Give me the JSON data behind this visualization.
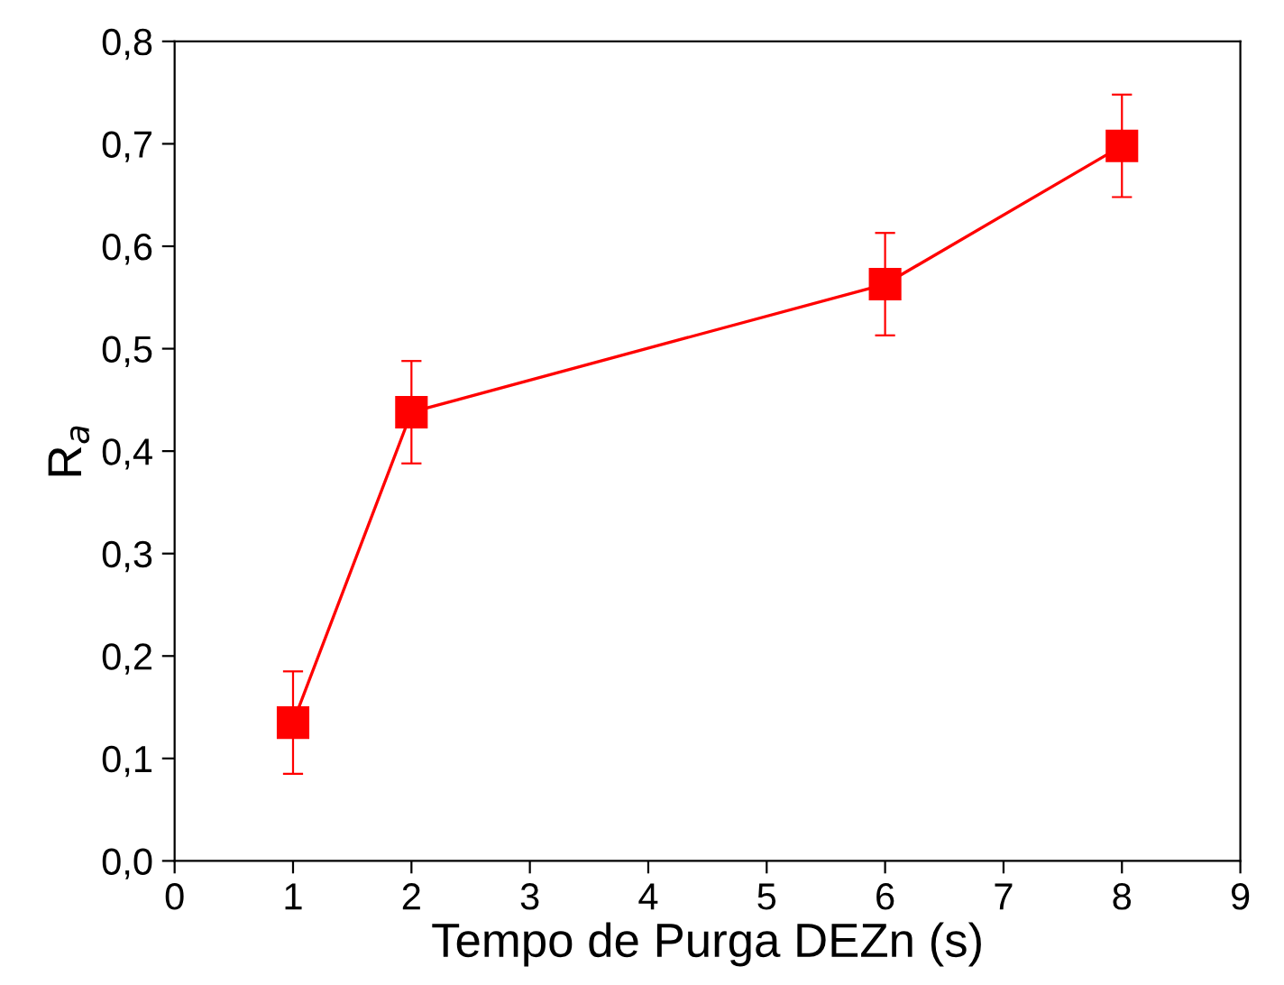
{
  "chart_data": {
    "type": "line",
    "xlabel": "Tempo de Purga DEZn (s)",
    "ylabel": "R$_{a}$",
    "x": [
      1,
      2,
      6,
      8
    ],
    "series": [
      {
        "color": "#ff0000",
        "values": [
          0.135,
          0.438,
          0.563,
          0.698
        ],
        "errors": [
          0.05,
          0.05,
          0.05,
          0.05
        ]
      }
    ],
    "marker": "square",
    "line_style": "solid",
    "grid": false,
    "legend": false,
    "xlim": [
      0,
      9
    ],
    "xticks": [
      0,
      1,
      2,
      3,
      4,
      5,
      6,
      7,
      8,
      9
    ],
    "ylim": [
      0,
      0.8
    ],
    "yticks": [
      {
        "value": 0,
        "label": "0,0"
      },
      {
        "value": 0.1,
        "label": "0,1"
      },
      {
        "value": 0.2,
        "label": "0,2"
      },
      {
        "value": 0.3,
        "label": "0,3"
      },
      {
        "value": 0.4,
        "label": "0,4"
      },
      {
        "value": 0.5,
        "label": "0,5"
      },
      {
        "value": 0.6,
        "label": "0,6"
      },
      {
        "value": 0.7,
        "label": "0,7"
      },
      {
        "value": 0.8,
        "label": "0,8"
      }
    ]
  }
}
